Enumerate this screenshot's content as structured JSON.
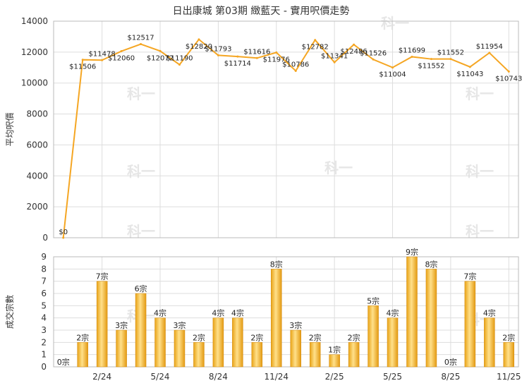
{
  "chart_data": [
    {
      "type": "line",
      "title": "日出康城 第03期 緻藍天 - 實用呎價走勢",
      "ylabel": "平均呎價",
      "ylim": [
        0,
        14000
      ],
      "yticks": [
        "0",
        "2000",
        "4000",
        "6000",
        "8000",
        "10000",
        "12000",
        "14000"
      ],
      "xticks": [
        "2/24",
        "5/24",
        "8/24",
        "11/24",
        "2/25",
        "5/25",
        "8/25",
        "11/25"
      ],
      "color": "#F5A623",
      "values": [
        0,
        11506,
        11478,
        12060,
        12517,
        12072,
        11190,
        12820,
        11793,
        11714,
        11616,
        11976,
        10786,
        12782,
        11341,
        12486,
        11526,
        11004,
        11699,
        11552,
        11552,
        11043,
        11954,
        10743
      ],
      "labels": [
        "$0",
        "$11506",
        "$11478",
        "$12060",
        "$12517",
        "$12072",
        "$11190",
        "$12820",
        "$11793",
        "$11714",
        "$11616",
        "$11976",
        "$10786",
        "$12782",
        "$11341",
        "$12486",
        "$11526",
        "$11004",
        "$11699",
        "$11552",
        "$11552",
        "$11043",
        "$11954",
        "$10743"
      ],
      "grid": true
    },
    {
      "type": "bar",
      "ylabel": "成交宗數",
      "ylim": [
        0,
        9
      ],
      "yticks": [
        "0",
        "1",
        "2",
        "3",
        "4",
        "5",
        "6",
        "7",
        "8",
        "9"
      ],
      "xticks": [
        "2/24",
        "5/24",
        "8/24",
        "11/24",
        "2/25",
        "5/25",
        "8/25",
        "11/25"
      ],
      "color": "#F5A623",
      "values": [
        0,
        2,
        7,
        3,
        6,
        4,
        3,
        2,
        4,
        4,
        2,
        8,
        3,
        2,
        1,
        2,
        5,
        4,
        9,
        8,
        0,
        7,
        4,
        2
      ],
      "labels": [
        "0宗",
        "2宗",
        "7宗",
        "3宗",
        "6宗",
        "4宗",
        "3宗",
        "2宗",
        "4宗",
        "4宗",
        "2宗",
        "8宗",
        "3宗",
        "2宗",
        "1宗",
        "2宗",
        "5宗",
        "4宗",
        "9宗",
        "8宗",
        "0宗",
        "7宗",
        "4宗",
        "2宗"
      ],
      "grid": true
    }
  ],
  "watermark": "科一"
}
